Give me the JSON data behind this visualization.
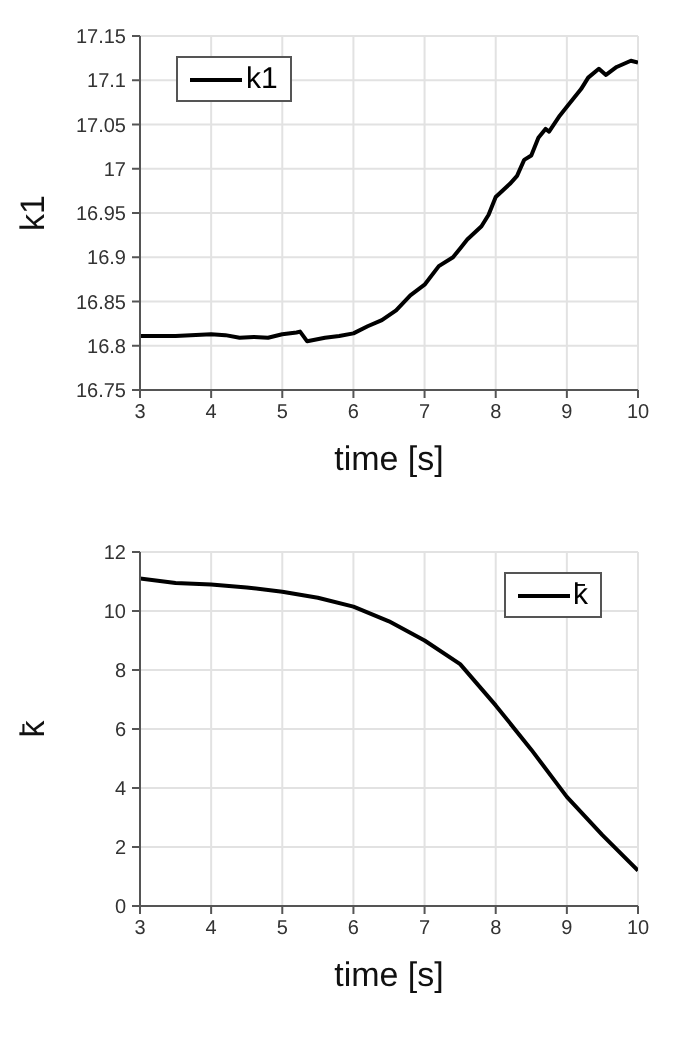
{
  "chart_data": [
    {
      "type": "line",
      "xlabel": "time [s]",
      "ylabel": "k1",
      "xlim": [
        3,
        10
      ],
      "xticks": [
        3,
        4,
        5,
        6,
        7,
        8,
        9,
        10
      ],
      "ylim": [
        16.75,
        17.15
      ],
      "yticks": [
        16.75,
        16.8,
        16.85,
        16.9,
        16.95,
        17,
        17.05,
        17.1,
        17.15
      ],
      "grid": true,
      "legend": "top left",
      "marker": "none",
      "line_style": "solid",
      "x": [
        3,
        3.5,
        4,
        4.2,
        4.4,
        4.6,
        4.8,
        5,
        5.2,
        5.25,
        5.35,
        5.6,
        5.8,
        6,
        6.2,
        6.4,
        6.6,
        6.8,
        7,
        7.2,
        7.4,
        7.5,
        7.6,
        7.8,
        7.9,
        8,
        8.2,
        8.3,
        8.4,
        8.5,
        8.6,
        8.7,
        8.75,
        8.9,
        9,
        9.2,
        9.3,
        9.45,
        9.55,
        9.7,
        9.9,
        10
      ],
      "series": [
        {
          "name": "k1",
          "color": "#000000",
          "values": [
            16.811,
            16.811,
            16.813,
            16.812,
            16.809,
            16.81,
            16.809,
            16.813,
            16.815,
            16.816,
            16.805,
            16.809,
            16.811,
            16.814,
            16.822,
            16.829,
            16.84,
            16.857,
            16.869,
            16.89,
            16.9,
            16.91,
            16.92,
            16.935,
            16.948,
            16.968,
            16.983,
            16.992,
            17.01,
            17.015,
            17.035,
            17.045,
            17.042,
            17.06,
            17.07,
            17.09,
            17.103,
            17.113,
            17.106,
            17.115,
            17.122,
            17.12
          ]
        }
      ]
    },
    {
      "type": "line",
      "xlabel": "time [s]",
      "ylabel": "k̄",
      "xlim": [
        3,
        10
      ],
      "xticks": [
        3,
        4,
        5,
        6,
        7,
        8,
        9,
        10
      ],
      "ylim": [
        0,
        12
      ],
      "yticks": [
        0,
        2,
        4,
        6,
        8,
        10,
        12
      ],
      "grid": true,
      "legend": "top right",
      "marker": "none",
      "line_style": "solid",
      "x": [
        3,
        3.5,
        4,
        4.5,
        5,
        5.5,
        6,
        6.5,
        7,
        7.5,
        8,
        8.5,
        9,
        9.5,
        10
      ],
      "series": [
        {
          "name": "k̄",
          "color": "#000000",
          "values": [
            11.1,
            10.95,
            10.9,
            10.8,
            10.65,
            10.45,
            10.15,
            9.65,
            9.0,
            8.2,
            6.8,
            5.3,
            3.7,
            2.4,
            1.2
          ]
        }
      ]
    }
  ]
}
